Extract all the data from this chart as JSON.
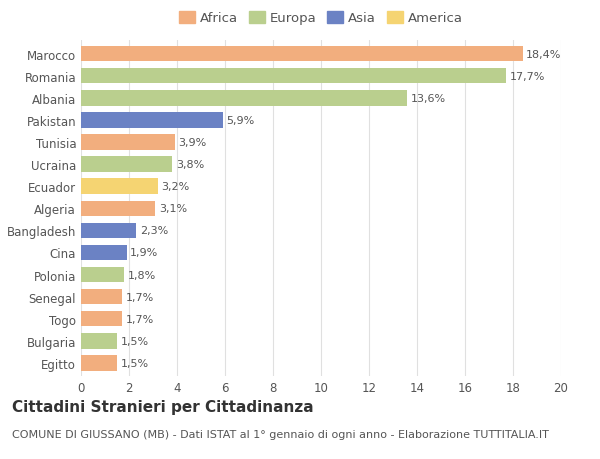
{
  "countries": [
    "Marocco",
    "Romania",
    "Albania",
    "Pakistan",
    "Tunisia",
    "Ucraina",
    "Ecuador",
    "Algeria",
    "Bangladesh",
    "Cina",
    "Polonia",
    "Senegal",
    "Togo",
    "Bulgaria",
    "Egitto"
  ],
  "values": [
    18.4,
    17.7,
    13.6,
    5.9,
    3.9,
    3.8,
    3.2,
    3.1,
    2.3,
    1.9,
    1.8,
    1.7,
    1.7,
    1.5,
    1.5
  ],
  "labels": [
    "18,4%",
    "17,7%",
    "13,6%",
    "5,9%",
    "3,9%",
    "3,8%",
    "3,2%",
    "3,1%",
    "2,3%",
    "1,9%",
    "1,8%",
    "1,7%",
    "1,7%",
    "1,5%",
    "1,5%"
  ],
  "continents": [
    "Africa",
    "Europa",
    "Europa",
    "Asia",
    "Africa",
    "Europa",
    "America",
    "Africa",
    "Asia",
    "Asia",
    "Europa",
    "Africa",
    "Africa",
    "Europa",
    "Africa"
  ],
  "colors": {
    "Africa": "#F2AE7E",
    "Europa": "#BACF8E",
    "Asia": "#6B82C4",
    "America": "#F5D472"
  },
  "title": "Cittadini Stranieri per Cittadinanza",
  "subtitle": "COMUNE DI GIUSSANO (MB) - Dati ISTAT al 1° gennaio di ogni anno - Elaborazione TUTTITALIA.IT",
  "xlim": [
    0,
    20
  ],
  "xticks": [
    0,
    2,
    4,
    6,
    8,
    10,
    12,
    14,
    16,
    18,
    20
  ],
  "background_color": "#ffffff",
  "grid_color": "#e0e0e0",
  "bar_height": 0.7,
  "title_fontsize": 11,
  "subtitle_fontsize": 8,
  "label_fontsize": 8,
  "tick_fontsize": 8.5,
  "legend_fontsize": 9.5
}
